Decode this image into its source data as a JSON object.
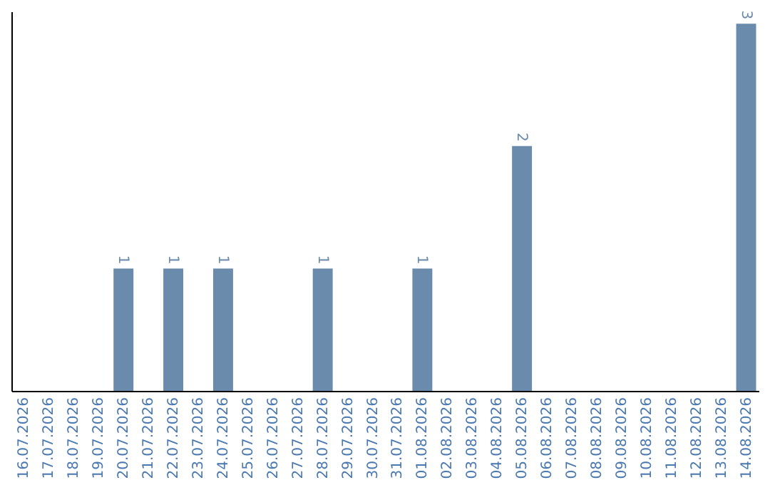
{
  "chart_data": {
    "type": "bar",
    "categories": [
      "16.07.2026",
      "17.07.2026",
      "18.07.2026",
      "19.07.2026",
      "20.07.2026",
      "21.07.2026",
      "22.07.2026",
      "23.07.2026",
      "24.07.2026",
      "25.07.2026",
      "26.07.2026",
      "27.07.2026",
      "28.07.2026",
      "29.07.2026",
      "30.07.2026",
      "31.07.2026",
      "01.08.2026",
      "02.08.2026",
      "03.08.2026",
      "04.08.2026",
      "05.08.2026",
      "06.08.2026",
      "07.08.2026",
      "08.08.2026",
      "09.08.2026",
      "10.08.2026",
      "11.08.2026",
      "12.08.2026",
      "13.08.2026",
      "14.08.2026"
    ],
    "values": [
      0,
      0,
      0,
      0,
      1,
      0,
      1,
      0,
      1,
      0,
      0,
      0,
      1,
      0,
      0,
      0,
      1,
      0,
      0,
      0,
      2,
      0,
      0,
      0,
      0,
      0,
      0,
      0,
      0,
      3
    ],
    "value_labels": [
      null,
      null,
      null,
      null,
      "1",
      null,
      "1",
      null,
      "1",
      null,
      null,
      null,
      "1",
      null,
      null,
      null,
      "1",
      null,
      null,
      null,
      "2",
      null,
      null,
      null,
      null,
      null,
      null,
      null,
      null,
      "3"
    ],
    "color": "#6a8bab",
    "ylim": [
      0,
      3.1
    ],
    "tick_labels": "x",
    "grid": false
  }
}
